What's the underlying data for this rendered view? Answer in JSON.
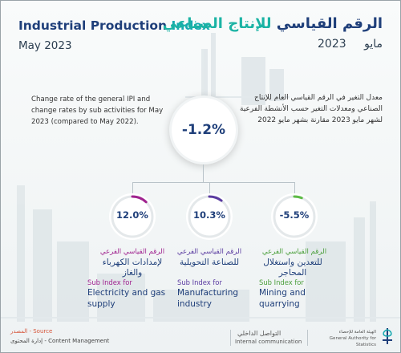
{
  "header": {
    "title_en_part1": "Industrial Production",
    "title_en_part2": "Index",
    "date_en": "May 2023",
    "title_ar_part1": "الرقم القياسي",
    "title_ar_part2": "للإنتاج الصناعي",
    "date_ar_month": "مايو",
    "date_ar_year": "2023"
  },
  "description": {
    "en": "Change rate of the general IPI and change rates by sub activities for May 2023 (compared to May 2022).",
    "ar": "معدل التغير في الرقم القياسي العام للإنتاج الصناعي ومعدلات التغير حسب الأنشطة الفرعية لشهر مايو 2023 مقارنة بشهر مايو 2022"
  },
  "general": {
    "value": "-1.2%"
  },
  "sub_indices": [
    {
      "value": "12.0%",
      "fraction": 0.12,
      "color": "#a0238f",
      "label_ar_1": "الرقم القياسي الفرعي",
      "label_ar_2": "لإمدادات الكهرباء والغاز",
      "label_en_1": "Sub Index for",
      "label_en_2": "Electricity and gas supply"
    },
    {
      "value": "10.3%",
      "fraction": 0.103,
      "color": "#5a3ba0",
      "label_ar_1": "الرقم القياسي الفرعي",
      "label_ar_2": "للصناعة التحويلية",
      "label_en_1": "Sub Index for",
      "label_en_2": "Manufacturing industry"
    },
    {
      "value": "-5.5%",
      "fraction": 0.055,
      "color": "#5dbb46",
      "label_ar_1": "الرقم القياسي الفرعي",
      "label_ar_2": "للتعدين واستغلال المحاجر",
      "label_en_1": "Sub Index for",
      "label_en_2": "Mining and quarrying"
    }
  ],
  "footer": {
    "source_ar": "المصدر - Source",
    "source_en": "إدارة المحتوى - Content Management",
    "ic_ar": "التواصل الداخلي",
    "ic_en": "Internal communication",
    "gastat_ar": "الهيئة العامة للإحصاء",
    "gastat_en": "General Authority for Statistics"
  },
  "colors": {
    "navy": "#1f3f7a",
    "teal": "#17a9b0",
    "source": "#d6553a"
  }
}
